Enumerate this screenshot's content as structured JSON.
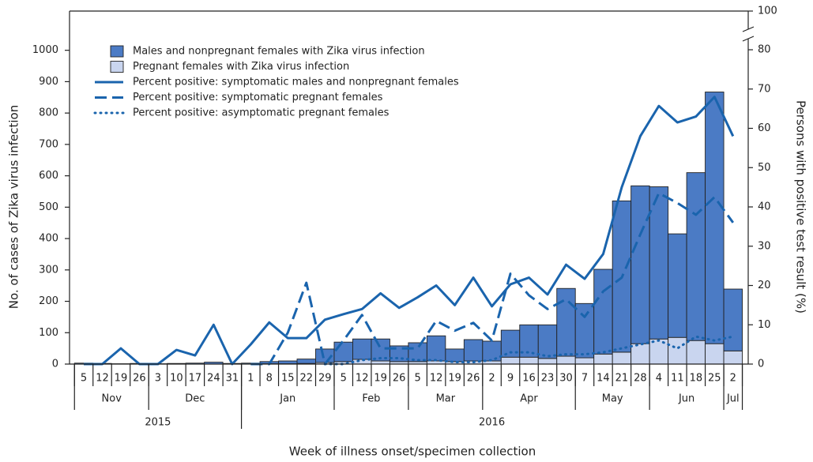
{
  "chart_data": {
    "type": "bar_line_combo",
    "x_label": "Week of illness onset/specimen collection",
    "y_label": "No. of cases of Zika virus infection",
    "y2_label": "Persons with positive test result (%)",
    "categories": [
      "5",
      "12",
      "19",
      "26",
      "3",
      "10",
      "17",
      "24",
      "31",
      "1",
      "8",
      "15",
      "22",
      "29",
      "5",
      "12",
      "19",
      "26",
      "5",
      "12",
      "19",
      "26",
      "2",
      "9",
      "16",
      "23",
      "30",
      "7",
      "14",
      "21",
      "28",
      "4",
      "11",
      "18",
      "25",
      "2"
    ],
    "month_groups": [
      {
        "label": "Nov",
        "count": 4
      },
      {
        "label": "Dec",
        "count": 5
      },
      {
        "label": "Jan",
        "count": 5
      },
      {
        "label": "Feb",
        "count": 4
      },
      {
        "label": "Mar",
        "count": 4
      },
      {
        "label": "Apr",
        "count": 5
      },
      {
        "label": "May",
        "count": 4
      },
      {
        "label": "Jun",
        "count": 4
      },
      {
        "label": "Jul",
        "count": 1
      }
    ],
    "year_groups": [
      {
        "label": "2015",
        "count": 9
      },
      {
        "label": "2016",
        "count": 27
      }
    ],
    "ylim": [
      0,
      1125
    ],
    "yticks": [
      0,
      100,
      200,
      300,
      400,
      500,
      600,
      700,
      800,
      900,
      1000
    ],
    "y2lim": [
      0,
      100
    ],
    "y2ticks": [
      0,
      10,
      20,
      30,
      40,
      50,
      60,
      70,
      80,
      100
    ],
    "y2_break_after": 80,
    "series": [
      {
        "name": "Males and nonpregnant females with Zika virus infection",
        "type": "bar",
        "color": "#4b7bc5",
        "values": [
          3,
          2,
          1,
          2,
          1,
          2,
          3,
          6,
          2,
          3,
          7,
          9,
          14,
          43,
          62,
          65,
          70,
          50,
          60,
          80,
          40,
          68,
          63,
          86,
          103,
          107,
          216,
          173,
          270,
          482,
          503,
          485,
          330,
          535,
          802,
          197
        ]
      },
      {
        "name": "Pregnant females with Zika virus infection",
        "type": "bar",
        "color": "#c9d5ef",
        "values": [
          0,
          0,
          0,
          0,
          0,
          0,
          0,
          0,
          0,
          0,
          1,
          1,
          2,
          5,
          8,
          15,
          10,
          8,
          8,
          10,
          8,
          10,
          10,
          22,
          22,
          18,
          25,
          20,
          32,
          38,
          65,
          80,
          85,
          75,
          65,
          42
        ]
      },
      {
        "name": "Percent positive: symptomatic males and nonpregnant females",
        "type": "line",
        "axis": "y2",
        "dash": "solid",
        "color": "#1a64ad",
        "values": [
          0,
          0,
          4,
          0,
          0,
          3.6,
          2.2,
          10,
          0,
          5,
          10.6,
          6.6,
          6.6,
          11.3,
          12.7,
          14,
          18,
          14.3,
          17,
          20,
          15,
          22,
          14.7,
          20.3,
          22,
          17.7,
          25.3,
          21.7,
          28,
          45,
          58,
          65.7,
          61.5,
          63,
          68,
          58
        ]
      },
      {
        "name": "Percent positive: symptomatic pregnant females",
        "type": "line",
        "axis": "y2",
        "dash": "dashed",
        "color": "#1a64ad",
        "values": [
          null,
          null,
          null,
          null,
          null,
          null,
          null,
          null,
          null,
          0,
          0,
          8,
          20.7,
          0,
          6,
          12.5,
          4,
          4,
          4,
          11,
          8.5,
          10.5,
          6,
          23,
          17.5,
          14,
          16.5,
          12,
          18.5,
          22,
          33,
          43.5,
          41,
          38,
          42.5,
          36
        ]
      },
      {
        "name": "Percent positive: asymptomatic pregnant females",
        "type": "line",
        "axis": "y2",
        "dash": "dotted",
        "color": "#1a64ad",
        "values": [
          null,
          null,
          null,
          null,
          null,
          null,
          null,
          null,
          null,
          null,
          null,
          null,
          null,
          0,
          0,
          1,
          1.5,
          1.5,
          1,
          1,
          0.5,
          0.5,
          1,
          3,
          3,
          2,
          2.5,
          2.5,
          3,
          4,
          5,
          6,
          4,
          7,
          6,
          7
        ]
      }
    ]
  }
}
